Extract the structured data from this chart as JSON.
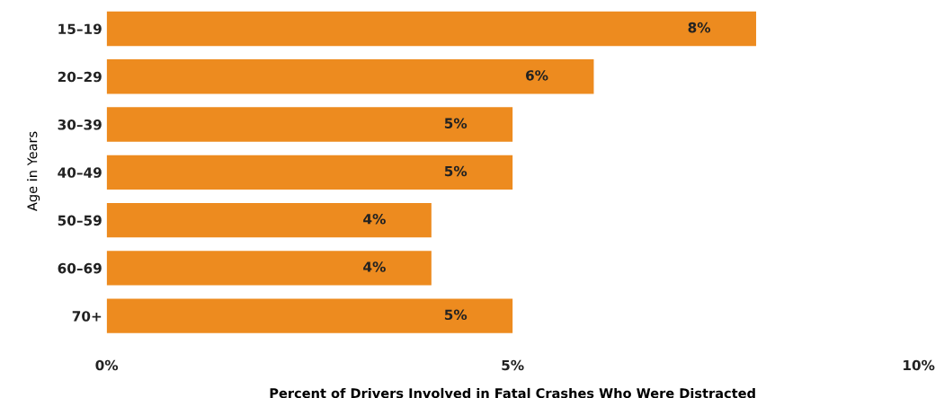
{
  "chart_data": {
    "type": "bar",
    "orientation": "horizontal",
    "xlabel": "Percent of Drivers Involved in Fatal Crashes Who Were Distracted",
    "ylabel": "Age in Years",
    "categories": [
      "15–19",
      "20–29",
      "30–39",
      "40–49",
      "50–59",
      "60–69",
      "70+"
    ],
    "values": [
      8,
      6,
      5,
      5,
      4,
      4,
      5
    ],
    "value_labels": [
      "8%",
      "6%",
      "5%",
      "5%",
      "4%",
      "4%",
      "5%"
    ],
    "color": "#ed8b1f",
    "xlim": [
      0,
      10
    ],
    "xticks": [
      {
        "value": 0,
        "label": "0%"
      },
      {
        "value": 5,
        "label": "5%"
      },
      {
        "value": 10,
        "label": "10%"
      }
    ],
    "grid": false,
    "legend": false
  }
}
